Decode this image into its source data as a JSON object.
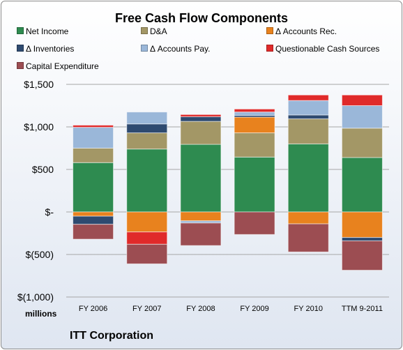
{
  "chart_data": {
    "type": "bar",
    "stacked": true,
    "title": "Free Cash Flow Components",
    "units_label": "millions",
    "company": "ITT Corporation",
    "categories": [
      "FY 2006",
      "FY 2007",
      "FY 2008",
      "FY 2009",
      "FY 2010",
      "TTM 9-2011"
    ],
    "ylim": [
      -1000,
      1500
    ],
    "yticks": [
      {
        "value": 1500,
        "label": "$1,500"
      },
      {
        "value": 1000,
        "label": "$1,000"
      },
      {
        "value": 500,
        "label": "$500"
      },
      {
        "value": 0,
        "label": "$-"
      },
      {
        "value": -500,
        "label": "$(500)"
      },
      {
        "value": -1000,
        "label": "$(1,000)"
      }
    ],
    "grid": true,
    "legend_position": "top",
    "series": [
      {
        "name": "Net Income",
        "color": "#2e8b50",
        "values": [
          580,
          740,
          795,
          645,
          800,
          640
        ]
      },
      {
        "name": "D&A",
        "color": "#a39766",
        "values": [
          170,
          190,
          270,
          285,
          295,
          345
        ]
      },
      {
        "name": "Δ Accounts Rec.",
        "color": "#e8821e",
        "values": [
          -50,
          -235,
          -105,
          185,
          -140,
          -300
        ]
      },
      {
        "name": "Δ Inventories",
        "color": "#2e4a70",
        "values": [
          -95,
          105,
          55,
          20,
          45,
          -40
        ]
      },
      {
        "name": "Δ Accounts Pay.",
        "color": "#9ab7d9",
        "values": [
          245,
          140,
          -25,
          40,
          170,
          265
        ]
      },
      {
        "name": "Questionable Cash Sources",
        "color": "#e02a2a",
        "values": [
          25,
          -145,
          25,
          35,
          65,
          125
        ]
      },
      {
        "name": "Capital Expenditure",
        "color": "#9c4d52",
        "values": [
          -175,
          -230,
          -265,
          -265,
          -330,
          -345
        ]
      }
    ]
  }
}
